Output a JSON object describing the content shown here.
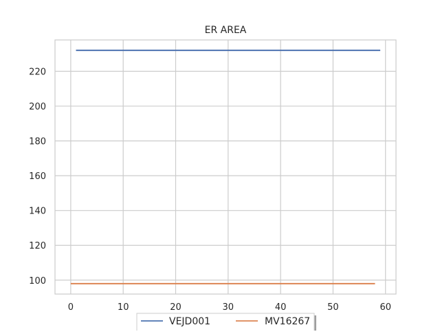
{
  "chart_data": {
    "type": "line",
    "title": "ER AREA",
    "xlabel": "",
    "ylabel": "",
    "xlim": [
      -3,
      62
    ],
    "ylim": [
      92,
      238
    ],
    "xticks": [
      0,
      10,
      20,
      30,
      40,
      50,
      60
    ],
    "yticks": [
      100,
      120,
      140,
      160,
      180,
      200,
      220
    ],
    "grid": true,
    "legend_position": "bottom-center",
    "series": [
      {
        "name": "VEJD001",
        "color": "#4c72b0",
        "x": [
          1,
          59
        ],
        "y": [
          232,
          232
        ]
      },
      {
        "name": "MV16267",
        "color": "#dd8452",
        "x": [
          0,
          58
        ],
        "y": [
          98,
          98
        ]
      }
    ]
  }
}
